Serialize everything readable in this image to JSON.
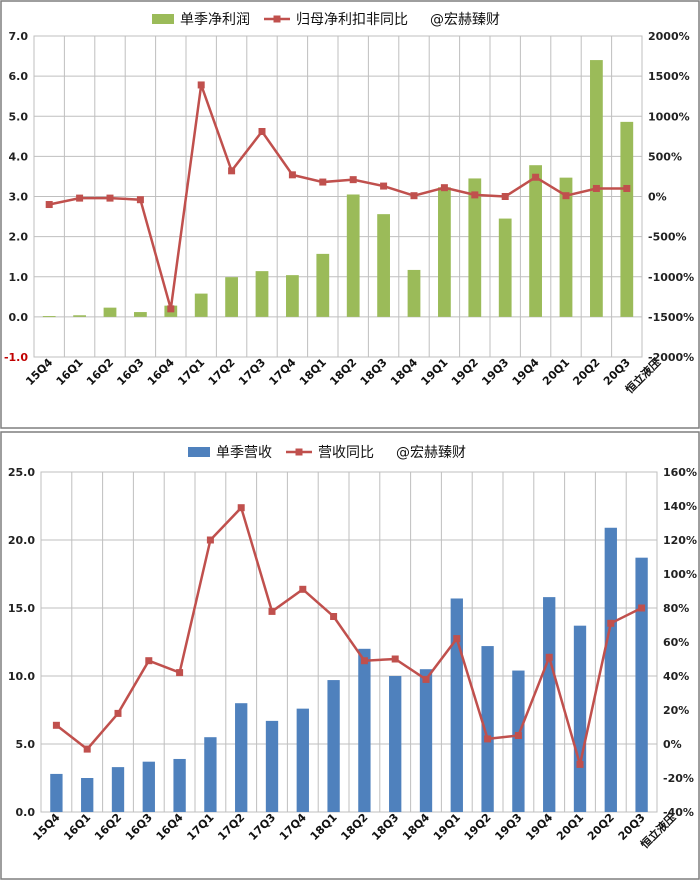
{
  "chart_data": [
    {
      "type": "bar+line",
      "categories": [
        "15Q4",
        "16Q1",
        "16Q2",
        "16Q3",
        "16Q4",
        "17Q1",
        "17Q2",
        "17Q3",
        "17Q4",
        "18Q1",
        "18Q2",
        "18Q3",
        "18Q4",
        "19Q1",
        "19Q2",
        "19Q3",
        "19Q4",
        "20Q1",
        "20Q2",
        "20Q3"
      ],
      "source_label": "恒立液压",
      "watermark": "@宏赫臻财",
      "y_left": {
        "min": -1.0,
        "max": 7.0,
        "step": 1.0,
        "ticks": [
          "-1.0",
          "0.0",
          "1.0",
          "2.0",
          "3.0",
          "4.0",
          "5.0",
          "6.0",
          "7.0"
        ]
      },
      "y_right": {
        "min": -2000,
        "max": 2000,
        "step": 500,
        "ticks": [
          "-2000%",
          "-1500%",
          "-1000%",
          "-500%",
          "0%",
          "500%",
          "1000%",
          "1500%",
          "2000%"
        ]
      },
      "series": [
        {
          "name": "单季净利润",
          "kind": "bar",
          "axis": "left",
          "color": "#9bbb59",
          "values": [
            0.02,
            0.04,
            0.23,
            0.12,
            0.28,
            0.58,
            0.99,
            1.14,
            1.04,
            1.57,
            3.05,
            2.56,
            1.17,
            3.23,
            3.45,
            2.45,
            3.78,
            3.47,
            6.4,
            4.86
          ]
        },
        {
          "name": "归母净利扣非同比",
          "kind": "line",
          "axis": "right",
          "color": "#c0504d",
          "values": [
            -100,
            -20,
            -20,
            -40,
            -1400,
            1390,
            320,
            810,
            270,
            180,
            210,
            130,
            10,
            110,
            20,
            0,
            240,
            10,
            100,
            100
          ]
        }
      ]
    },
    {
      "type": "bar+line",
      "categories": [
        "15Q4",
        "16Q1",
        "16Q2",
        "16Q3",
        "16Q4",
        "17Q1",
        "17Q2",
        "17Q3",
        "17Q4",
        "18Q1",
        "18Q2",
        "18Q3",
        "18Q4",
        "19Q1",
        "19Q2",
        "19Q3",
        "19Q4",
        "20Q1",
        "20Q2",
        "20Q3"
      ],
      "source_label": "恒立液压",
      "watermark": "@宏赫臻财",
      "y_left": {
        "min": 0,
        "max": 25,
        "step": 5,
        "ticks": [
          "0.0",
          "5.0",
          "10.0",
          "15.0",
          "20.0",
          "25.0"
        ]
      },
      "y_right": {
        "min": -40,
        "max": 160,
        "step": 20,
        "ticks": [
          "-40%",
          "-20%",
          "0%",
          "20%",
          "40%",
          "60%",
          "80%",
          "100%",
          "120%",
          "140%",
          "160%"
        ]
      },
      "series": [
        {
          "name": "单季营收",
          "kind": "bar",
          "axis": "left",
          "color": "#4f81bd",
          "values": [
            2.8,
            2.5,
            3.3,
            3.7,
            3.9,
            5.5,
            8.0,
            6.7,
            7.6,
            9.7,
            12.0,
            10.0,
            10.5,
            15.7,
            12.2,
            10.4,
            15.8,
            13.7,
            20.9,
            18.7
          ]
        },
        {
          "name": "营收同比",
          "kind": "line",
          "axis": "right",
          "color": "#c0504d",
          "values": [
            11,
            -3,
            18,
            49,
            42,
            120,
            139,
            78,
            91,
            75,
            49,
            50,
            38,
            62,
            3,
            5,
            51,
            -12,
            71,
            80
          ]
        }
      ]
    }
  ]
}
